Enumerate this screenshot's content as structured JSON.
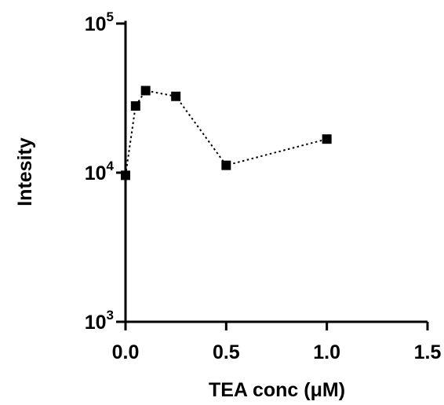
{
  "chart_data": {
    "type": "line",
    "title": "",
    "xlabel": "TEA conc (μM)",
    "ylabel": "Intesity",
    "x_scale": "linear",
    "y_scale": "log",
    "xlim": [
      0,
      1.5
    ],
    "ylim": [
      1000,
      100000
    ],
    "x_ticks": [
      {
        "value": 0.0,
        "label": "0.0"
      },
      {
        "value": 0.5,
        "label": "0.5"
      },
      {
        "value": 1.0,
        "label": "1.0"
      },
      {
        "value": 1.5,
        "label": "1.5"
      }
    ],
    "y_ticks": [
      {
        "value": 1000,
        "base": "10",
        "exp": "3"
      },
      {
        "value": 10000,
        "base": "10",
        "exp": "4"
      },
      {
        "value": 100000,
        "base": "10",
        "exp": "5"
      }
    ],
    "grid": false,
    "legend": "none",
    "series": [
      {
        "marker": "square",
        "line_style": "dotted",
        "color": "#000000",
        "points": [
          {
            "x": 0.0,
            "y": 9600
          },
          {
            "x": 0.05,
            "y": 28000
          },
          {
            "x": 0.1,
            "y": 35500
          },
          {
            "x": 0.25,
            "y": 32500
          },
          {
            "x": 0.5,
            "y": 11200
          },
          {
            "x": 1.0,
            "y": 16800
          }
        ]
      }
    ]
  }
}
